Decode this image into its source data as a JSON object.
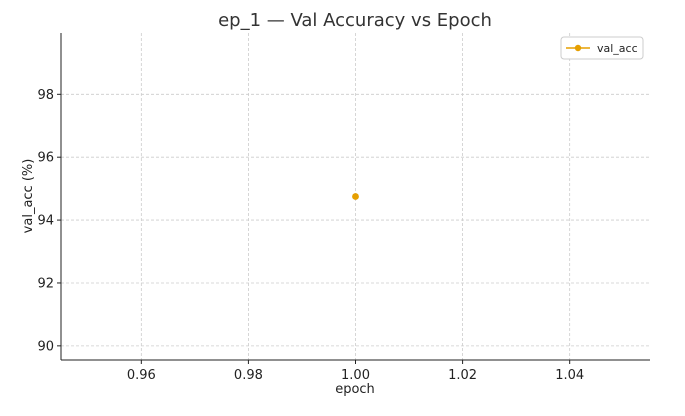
{
  "chart_data": {
    "type": "scatter",
    "title": "ep_1 — Val Accuracy vs Epoch",
    "xlabel": "epoch",
    "ylabel": "val_acc (%)",
    "xlim": [
      0.945,
      1.055
    ],
    "ylim": [
      89.55,
      99.95
    ],
    "xticks": [
      0.96,
      0.98,
      1.0,
      1.02,
      1.04
    ],
    "xtick_labels": [
      "0.96",
      "0.98",
      "1.00",
      "1.02",
      "1.04"
    ],
    "yticks": [
      90,
      92,
      94,
      96,
      98
    ],
    "ytick_labels": [
      "90",
      "92",
      "94",
      "96",
      "98"
    ],
    "grid": true,
    "legend_position": "top-right",
    "series": [
      {
        "name": "val_acc",
        "color": "#E69F00",
        "x": [
          1.0
        ],
        "y": [
          94.75
        ]
      }
    ]
  }
}
